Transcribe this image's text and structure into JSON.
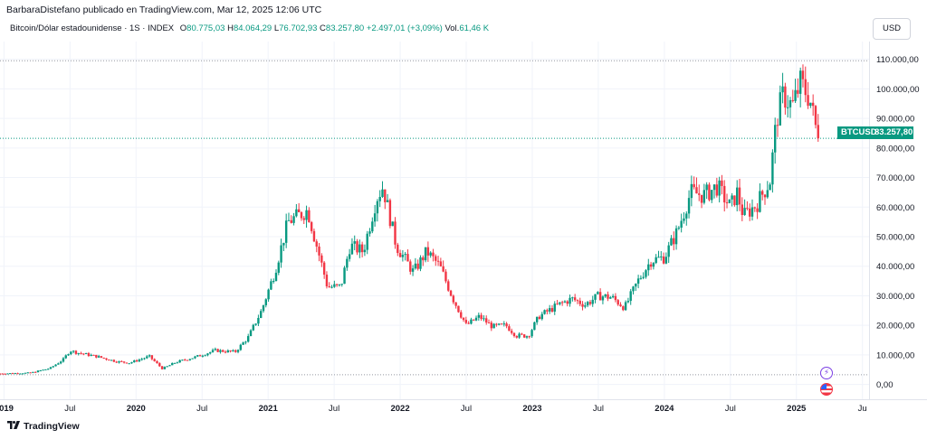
{
  "header": {
    "publisher_line": "BarbaraDistefano publicado en TradingView.com, Mar 12, 2025 12:06 UTC"
  },
  "legend": {
    "symbol": "Bitcoin/Dólar estadounidense · 1S · INDEX",
    "open_label": "O",
    "open": "80.775,03",
    "high_label": "H",
    "high": "84.064,29",
    "low_label": "L",
    "low": "76.702,93",
    "close_label": "C",
    "close": "83.257,80",
    "change": "+2.497,01 (+3,09%)",
    "volume_label": "Vol.",
    "volume": "61,46 K"
  },
  "currency_button": "USD",
  "price_label": {
    "symbol": "BTCUSD",
    "value": "83.257,80"
  },
  "footer": {
    "brand": "TradingView"
  },
  "colors": {
    "up": "#089981",
    "down": "#f23645",
    "accent": "#2962ff",
    "grid": "#f0f3fa"
  },
  "icons": {
    "event_bolt": "lightning-icon",
    "event_flag": "us-flag-icon",
    "logo": "tradingview-logo-icon"
  },
  "chart_data": {
    "type": "candlestick",
    "symbol": "BTCUSD",
    "interval": "1S",
    "y_axis_labels": [
      "110.000,00",
      "100.000,00",
      "90.000,00",
      "80.000,00",
      "70.000,00",
      "60.000,00",
      "50.000,00",
      "40.000,00",
      "30.000,00",
      "20.000,00",
      "10.000,00",
      "0,00"
    ],
    "y_ticks": [
      110000,
      100000,
      90000,
      80000,
      70000,
      60000,
      50000,
      40000,
      30000,
      20000,
      10000,
      0
    ],
    "ylim": [
      -5000,
      116000
    ],
    "x_axis_labels": [
      {
        "label": "2019",
        "t": 2019.0,
        "bold": true
      },
      {
        "label": "Jul",
        "t": 2019.5,
        "bold": false
      },
      {
        "label": "2020",
        "t": 2020.0,
        "bold": true
      },
      {
        "label": "Jul",
        "t": 2020.5,
        "bold": false
      },
      {
        "label": "2021",
        "t": 2021.0,
        "bold": true
      },
      {
        "label": "Jul",
        "t": 2021.5,
        "bold": false
      },
      {
        "label": "2022",
        "t": 2022.0,
        "bold": true
      },
      {
        "label": "Jul",
        "t": 2022.5,
        "bold": false
      },
      {
        "label": "2023",
        "t": 2023.0,
        "bold": true
      },
      {
        "label": "Jul",
        "t": 2023.5,
        "bold": false
      },
      {
        "label": "2024",
        "t": 2024.0,
        "bold": true
      },
      {
        "label": "Jul",
        "t": 2024.5,
        "bold": false
      },
      {
        "label": "2025",
        "t": 2025.0,
        "bold": true
      },
      {
        "label": "Ju",
        "t": 2025.5,
        "bold": false
      }
    ],
    "xlim": [
      2018.97,
      2025.55
    ],
    "last_close": 83257.8,
    "dotted_lines": [
      109500,
      83257.8,
      3300
    ],
    "price_path": [
      [
        2018.97,
        3700
      ],
      [
        2019.2,
        3900
      ],
      [
        2019.35,
        5500
      ],
      [
        2019.45,
        8500
      ],
      [
        2019.5,
        11500
      ],
      [
        2019.55,
        10800
      ],
      [
        2019.7,
        9500
      ],
      [
        2019.85,
        7800
      ],
      [
        2019.95,
        7300
      ],
      [
        2020.1,
        9500
      ],
      [
        2020.2,
        5300
      ],
      [
        2020.3,
        7500
      ],
      [
        2020.45,
        9300
      ],
      [
        2020.6,
        11500
      ],
      [
        2020.75,
        11000
      ],
      [
        2020.85,
        16000
      ],
      [
        2020.95,
        25000
      ],
      [
        2021.05,
        38000
      ],
      [
        2021.15,
        55000
      ],
      [
        2021.3,
        59000
      ],
      [
        2021.35,
        50000
      ],
      [
        2021.45,
        33000
      ],
      [
        2021.55,
        33000
      ],
      [
        2021.62,
        47000
      ],
      [
        2021.72,
        45000
      ],
      [
        2021.82,
        63000
      ],
      [
        2021.87,
        67000
      ],
      [
        2021.97,
        47000
      ],
      [
        2022.1,
        38000
      ],
      [
        2022.2,
        45000
      ],
      [
        2022.3,
        40000
      ],
      [
        2022.4,
        29000
      ],
      [
        2022.5,
        20000
      ],
      [
        2022.6,
        23000
      ],
      [
        2022.7,
        19500
      ],
      [
        2022.8,
        20000
      ],
      [
        2022.88,
        16500
      ],
      [
        2022.97,
        16500
      ],
      [
        2023.05,
        23000
      ],
      [
        2023.2,
        27000
      ],
      [
        2023.3,
        29000
      ],
      [
        2023.4,
        27000
      ],
      [
        2023.5,
        30000
      ],
      [
        2023.6,
        29500
      ],
      [
        2023.7,
        26000
      ],
      [
        2023.8,
        35000
      ],
      [
        2023.9,
        42000
      ],
      [
        2024.0,
        43000
      ],
      [
        2024.1,
        52000
      ],
      [
        2024.2,
        65000
      ],
      [
        2024.3,
        64000
      ],
      [
        2024.4,
        67000
      ],
      [
        2024.5,
        60000
      ],
      [
        2024.55,
        65000
      ],
      [
        2024.6,
        57000
      ],
      [
        2024.7,
        61000
      ],
      [
        2024.8,
        69000
      ],
      [
        2024.85,
        90000
      ],
      [
        2024.9,
        98000
      ],
      [
        2024.97,
        94000
      ],
      [
        2025.03,
        102000
      ],
      [
        2025.1,
        97000
      ],
      [
        2025.15,
        86000
      ],
      [
        2025.18,
        83257.8
      ]
    ]
  }
}
